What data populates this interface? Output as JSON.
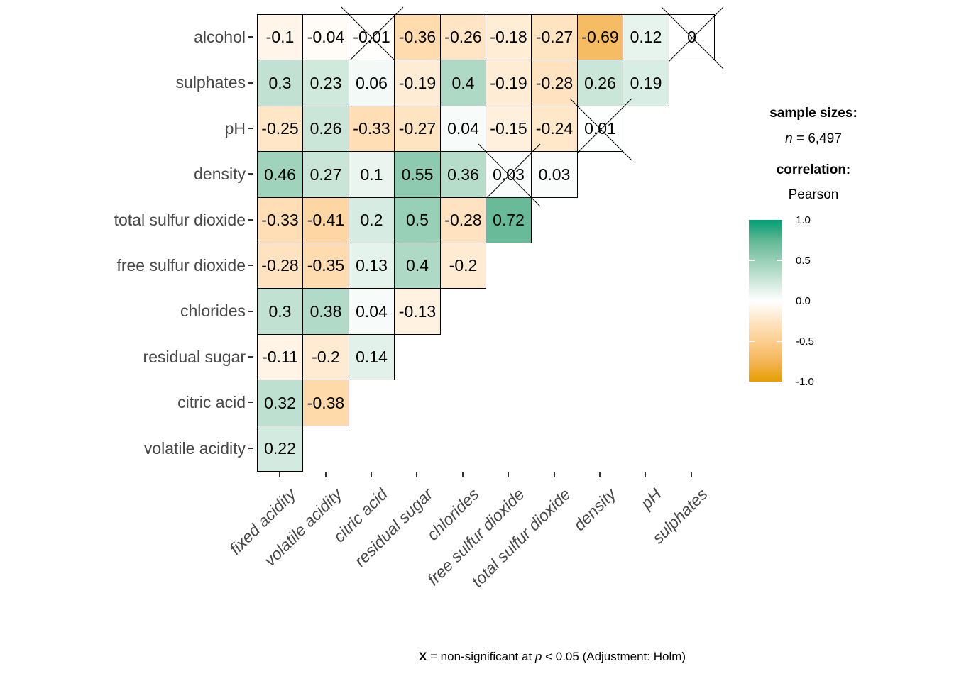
{
  "chart_data": {
    "type": "heatmap",
    "title": "",
    "x_categories": [
      "fixed acidity",
      "volatile acidity",
      "citric acid",
      "residual sugar",
      "chlorides",
      "free sulfur dioxide",
      "total sulfur dioxide",
      "density",
      "pH",
      "sulphates"
    ],
    "y_categories": [
      "alcohol",
      "sulphates",
      "pH",
      "density",
      "total sulfur dioxide",
      "free sulfur dioxide",
      "chlorides",
      "residual sugar",
      "citric acid",
      "volatile acidity"
    ],
    "rows": [
      {
        "label": "alcohol",
        "values": [
          "-0.1",
          "-0.04",
          "-0.01",
          "-0.36",
          "-0.26",
          "-0.18",
          "-0.27",
          "-0.69",
          "0.12",
          "0"
        ],
        "non_significant_cols": [
          2,
          9
        ]
      },
      {
        "label": "sulphates",
        "values": [
          "0.3",
          "0.23",
          "0.06",
          "-0.19",
          "0.4",
          "-0.19",
          "-0.28",
          "0.26",
          "0.19"
        ],
        "non_significant_cols": []
      },
      {
        "label": "pH",
        "values": [
          "-0.25",
          "0.26",
          "-0.33",
          "-0.27",
          "0.04",
          "-0.15",
          "-0.24",
          "0.01"
        ],
        "non_significant_cols": [
          7
        ]
      },
      {
        "label": "density",
        "values": [
          "0.46",
          "0.27",
          "0.1",
          "0.55",
          "0.36",
          "0.03",
          "0.03"
        ],
        "non_significant_cols": [
          5
        ]
      },
      {
        "label": "total sulfur dioxide",
        "values": [
          "-0.33",
          "-0.41",
          "0.2",
          "0.5",
          "-0.28",
          "0.72"
        ],
        "non_significant_cols": []
      },
      {
        "label": "free sulfur dioxide",
        "values": [
          "-0.28",
          "-0.35",
          "0.13",
          "0.4",
          "-0.2"
        ],
        "non_significant_cols": []
      },
      {
        "label": "chlorides",
        "values": [
          "0.3",
          "0.38",
          "0.04",
          "-0.13"
        ],
        "non_significant_cols": []
      },
      {
        "label": "residual sugar",
        "values": [
          "-0.11",
          "-0.2",
          "0.14"
        ],
        "non_significant_cols": []
      },
      {
        "label": "citric acid",
        "values": [
          "0.32",
          "-0.38"
        ],
        "non_significant_cols": []
      },
      {
        "label": "volatile acidity",
        "values": [
          "0.22"
        ],
        "non_significant_cols": []
      }
    ],
    "colorscale": {
      "high": "#009E73",
      "mid": "#FFFFFF",
      "low": "#E69F00",
      "domain": [
        -1,
        1
      ]
    },
    "colorbar_ticks": [
      "1.0",
      "0.5",
      "0.0",
      "-0.5",
      "-1.0"
    ],
    "legend_position": "right",
    "grid": "off"
  },
  "legend": {
    "sample_sizes_title": "sample sizes:",
    "n_italic": "n",
    "n_rest": " = 6,497",
    "correlation_title": "correlation:",
    "method": "Pearson"
  },
  "caption": {
    "x_symbol": "X",
    "mid": " = non-significant at ",
    "p_symbol": "p",
    "rest": " < 0.05 (Adjustment: Holm)"
  }
}
